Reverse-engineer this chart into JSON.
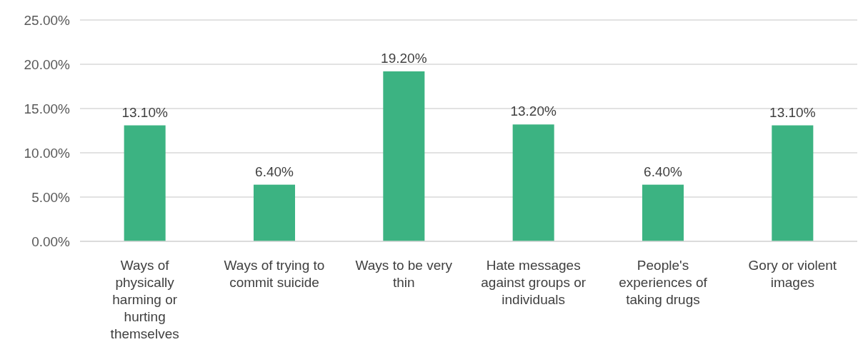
{
  "chart_data": {
    "type": "bar",
    "categories": [
      "Ways of physically harming or hurting themselves",
      "Ways of trying to commit suicide",
      "Ways to be very thin",
      "Hate messages against groups or individuals",
      "People's experiences of taking drugs",
      "Gory or violent images"
    ],
    "values": [
      13.1,
      6.4,
      19.2,
      13.2,
      6.4,
      13.1
    ],
    "value_labels": [
      "13.10%",
      "6.40%",
      "19.20%",
      "13.20%",
      "6.40%",
      "13.10%"
    ],
    "color": "#3cb382",
    "ylim": [
      0,
      25
    ],
    "yticks": [
      {
        "value": 0,
        "label": "0.00%"
      },
      {
        "value": 5,
        "label": "5.00%"
      },
      {
        "value": 10,
        "label": "10.00%"
      },
      {
        "value": 15,
        "label": "15.00%"
      },
      {
        "value": 20,
        "label": "20.00%"
      },
      {
        "value": 25,
        "label": "25.00%"
      }
    ],
    "grid": "y"
  }
}
